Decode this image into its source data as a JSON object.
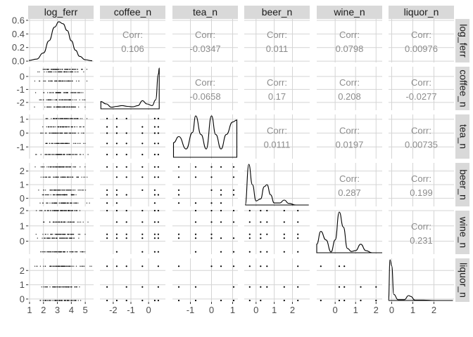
{
  "chart_data": {
    "type": "scatterplot-matrix",
    "variables": [
      "log_ferr",
      "coffee_n",
      "tea_n",
      "beer_n",
      "wine_n",
      "liquor_n"
    ],
    "corr_label": "Corr:",
    "correlations": [
      {
        "row": "log_ferr",
        "col": "coffee_n",
        "value": "0.106"
      },
      {
        "row": "log_ferr",
        "col": "tea_n",
        "value": "-0.0347"
      },
      {
        "row": "log_ferr",
        "col": "beer_n",
        "value": "0.011"
      },
      {
        "row": "log_ferr",
        "col": "wine_n",
        "value": "0.0798"
      },
      {
        "row": "log_ferr",
        "col": "liquor_n",
        "value": "0.00976"
      },
      {
        "row": "coffee_n",
        "col": "tea_n",
        "value": "-0.0658"
      },
      {
        "row": "coffee_n",
        "col": "beer_n",
        "value": "0.17"
      },
      {
        "row": "coffee_n",
        "col": "wine_n",
        "value": "0.208"
      },
      {
        "row": "coffee_n",
        "col": "liquor_n",
        "value": "-0.0277"
      },
      {
        "row": "tea_n",
        "col": "beer_n",
        "value": "0.0111"
      },
      {
        "row": "tea_n",
        "col": "wine_n",
        "value": "0.0197"
      },
      {
        "row": "tea_n",
        "col": "liquor_n",
        "value": "0.00735"
      },
      {
        "row": "beer_n",
        "col": "wine_n",
        "value": "0.287"
      },
      {
        "row": "beer_n",
        "col": "liquor_n",
        "value": "0.199"
      },
      {
        "row": "wine_n",
        "col": "liquor_n",
        "value": "0.231"
      }
    ],
    "x_axes": [
      {
        "var": "log_ferr",
        "range": [
          0.9,
          5.6
        ],
        "ticks": [
          1,
          2,
          3,
          4,
          5
        ],
        "tick_labels": [
          "1",
          "2",
          "3",
          "4",
          "5"
        ]
      },
      {
        "var": "coffee_n",
        "range": [
          -2.75,
          0.95
        ],
        "ticks": [
          -2,
          -1,
          0
        ],
        "tick_labels": [
          "-2",
          "-1",
          "0"
        ]
      },
      {
        "var": "tea_n",
        "range": [
          -1.85,
          1.25
        ],
        "ticks": [
          -1,
          0,
          1
        ],
        "tick_labels": [
          "-1",
          "0",
          "1"
        ]
      },
      {
        "var": "beer_n",
        "range": [
          -0.65,
          2.95
        ],
        "ticks": [
          0,
          1,
          2
        ],
        "tick_labels": [
          "0",
          "1",
          "2"
        ]
      },
      {
        "var": "wine_n",
        "range": [
          -0.9,
          2.3
        ],
        "ticks": [
          0,
          1,
          2
        ],
        "tick_labels": [
          "0",
          "1",
          "2"
        ]
      },
      {
        "var": "liquor_n",
        "range": [
          -0.15,
          2.95
        ],
        "ticks": [
          0,
          1,
          2
        ],
        "tick_labels": [
          "0",
          "1",
          "2"
        ]
      }
    ],
    "y_axes": [
      {
        "var": "log_ferr",
        "range": [
          -0.02,
          0.62
        ],
        "ticks": [
          0,
          0.2,
          0.4,
          0.6
        ],
        "tick_labels": [
          "0.0",
          "0.2",
          "0.4",
          "0.6"
        ]
      },
      {
        "var": "coffee_n",
        "range": [
          -2.6,
          0.75
        ],
        "ticks": [
          -2,
          -1,
          0
        ],
        "tick_labels": [
          "-2",
          "-1",
          "0"
        ]
      },
      {
        "var": "tea_n",
        "range": [
          -1.85,
          1.35
        ],
        "ticks": [
          -1,
          0,
          1
        ],
        "tick_labels": [
          "-1",
          "0",
          "1"
        ]
      },
      {
        "var": "beer_n",
        "range": [
          -0.6,
          2.6
        ],
        "ticks": [
          0,
          1,
          2
        ],
        "tick_labels": [
          "0",
          "1",
          "2"
        ]
      },
      {
        "var": "wine_n",
        "range": [
          -0.85,
          2.0
        ],
        "ticks": [
          0,
          1,
          2
        ],
        "tick_labels": [
          "0",
          "1",
          "2"
        ]
      },
      {
        "var": "liquor_n",
        "range": [
          -0.2,
          2.85
        ],
        "ticks": [
          0,
          1,
          2
        ],
        "tick_labels": [
          "0",
          "1",
          "2"
        ]
      }
    ],
    "distinct_values": {
      "coffee_n": [
        -2.35,
        -1.8,
        -1.25,
        -0.35,
        0.35,
        0.55
      ],
      "tea_n": [
        -1.55,
        -0.75,
        0.0,
        0.45,
        1.05
      ],
      "beer_n": [
        -0.35,
        0.25,
        0.6,
        1.55,
        2.3
      ],
      "wine_n": [
        -0.7,
        0.2,
        0.45,
        1.25,
        2.0
      ],
      "liquor_n": [
        -0.1,
        0.85,
        2.3
      ]
    },
    "diagonal_densities": {
      "log_ferr": {
        "x": [
          0.95,
          1.5,
          2.0,
          2.4,
          2.8,
          3.1,
          3.4,
          3.7,
          4.0,
          4.3,
          4.6,
          5.0,
          5.5
        ],
        "y": [
          0.01,
          0.03,
          0.12,
          0.3,
          0.5,
          0.58,
          0.55,
          0.45,
          0.3,
          0.16,
          0.07,
          0.02,
          0.005
        ]
      },
      "coffee_n": {
        "x": [
          -2.7,
          -2.4,
          -2.1,
          -1.8,
          -1.5,
          -1.2,
          -0.9,
          -0.6,
          -0.35,
          -0.1,
          0.2,
          0.4,
          0.55,
          0.6
        ],
        "y": [
          0.18,
          0.12,
          0.04,
          0.06,
          0.08,
          0.06,
          0.05,
          0.08,
          0.2,
          0.12,
          0.08,
          0.22,
          0.85,
          1.0
        ]
      },
      "tea_n": {
        "x": [
          -1.8,
          -1.55,
          -1.2,
          -0.9,
          -0.75,
          -0.5,
          -0.25,
          0.0,
          0.2,
          0.45,
          0.7,
          1.0,
          1.2
        ],
        "y": [
          0.35,
          0.5,
          0.2,
          0.6,
          1.0,
          0.55,
          0.2,
          1.0,
          0.55,
          0.2,
          0.55,
          0.85,
          0.9
        ]
      },
      "beer_n": {
        "x": [
          -0.6,
          -0.4,
          -0.2,
          0.0,
          0.25,
          0.45,
          0.6,
          0.8,
          1.0,
          1.3,
          1.55,
          1.8,
          2.2,
          2.9
        ],
        "y": [
          0.0,
          1.0,
          0.5,
          0.1,
          0.15,
          0.45,
          0.5,
          0.25,
          0.05,
          0.05,
          0.12,
          0.04,
          0.0,
          0.0
        ]
      },
      "wine_n": {
        "x": [
          -0.9,
          -0.7,
          -0.45,
          -0.2,
          0.0,
          0.2,
          0.4,
          0.6,
          0.8,
          1.0,
          1.25,
          1.5,
          1.8,
          2.3
        ],
        "y": [
          0.2,
          0.5,
          0.3,
          0.02,
          0.3,
          0.95,
          0.6,
          0.1,
          0.03,
          0.05,
          0.2,
          0.05,
          0.0,
          0.0
        ]
      },
      "liquor_n": {
        "x": [
          -0.15,
          -0.08,
          0.0,
          0.1,
          0.3,
          0.6,
          0.8,
          0.9,
          1.1,
          1.5,
          2.0,
          2.9
        ],
        "y": [
          0.0,
          1.0,
          0.85,
          0.15,
          0.02,
          0.02,
          0.12,
          0.1,
          0.01,
          0.01,
          0.0,
          0.0
        ]
      }
    },
    "grid": true,
    "colors": {
      "strip_bg": "#d9d9d9",
      "grid": "#d4d4d4",
      "points": "#000000",
      "density_line": "#000000",
      "corr_text": "#8c8c8c"
    }
  }
}
